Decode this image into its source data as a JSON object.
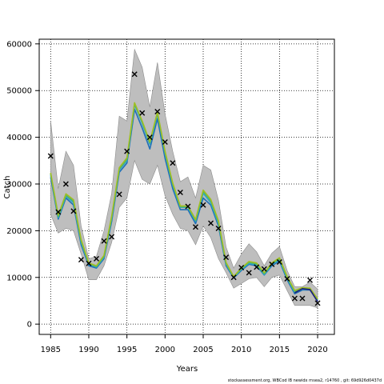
{
  "chart_data": {
    "type": "line",
    "xlabel": "Years",
    "ylabel": "Catch",
    "xlim": [
      1983.5,
      2022.2
    ],
    "ylim": [
      -2200,
      61000
    ],
    "x_ticks": [
      1985,
      1990,
      1995,
      2000,
      2005,
      2010,
      2015,
      2020
    ],
    "y_ticks": [
      0,
      10000,
      20000,
      30000,
      40000,
      50000,
      60000
    ],
    "grid": true,
    "grid_style": "dotted",
    "years": [
      1985,
      1986,
      1987,
      1988,
      1989,
      1990,
      1991,
      1992,
      1993,
      1994,
      1995,
      1996,
      1997,
      1998,
      1999,
      2000,
      2001,
      2002,
      2003,
      2004,
      2005,
      2006,
      2007,
      2008,
      2009,
      2010,
      2011,
      2012,
      2013,
      2014,
      2015,
      2016,
      2017,
      2018,
      2019,
      2020
    ],
    "observed": [
      36000,
      24000,
      30000,
      24200,
      13800,
      13000,
      14000,
      17800,
      18700,
      27800,
      37000,
      53500,
      45200,
      40000,
      45500,
      39000,
      34500,
      28200,
      25200,
      20800,
      25500,
      21600,
      20500,
      14300,
      10000,
      12100,
      11000,
      12200,
      11800,
      12800,
      13300,
      9700,
      5500,
      5500,
      9400,
      4500
    ],
    "ci_upper": [
      43500,
      29000,
      37000,
      34000,
      21000,
      14000,
      14500,
      20000,
      28000,
      44500,
      43500,
      58800,
      55000,
      46500,
      56000,
      45000,
      37000,
      30500,
      31500,
      27000,
      34000,
      33000,
      26500,
      16500,
      12000,
      15000,
      17200,
      15500,
      12500,
      15200,
      16600,
      11500,
      8000,
      8000,
      9000,
      7500
    ],
    "ci_lower": [
      23500,
      19500,
      20500,
      20000,
      15000,
      9500,
      9500,
      12500,
      17500,
      25000,
      27000,
      35000,
      31000,
      30000,
      34000,
      27500,
      23500,
      20500,
      20000,
      17000,
      21000,
      18500,
      14000,
      11000,
      7700,
      8700,
      9700,
      10000,
      8000,
      10000,
      10500,
      7200,
      4000,
      4000,
      4000,
      3500
    ],
    "series": [
      {
        "color": "#1f6fb8",
        "values": [
          31500,
          22500,
          27000,
          25500,
          17000,
          12500,
          12000,
          14000,
          22000,
          32500,
          34500,
          46000,
          42000,
          37500,
          44000,
          35500,
          29000,
          24500,
          24500,
          21500,
          27000,
          25500,
          21000,
          12500,
          9900,
          11500,
          12800,
          12500,
          10500,
          12500,
          13500,
          9500,
          6500,
          7300,
          7300,
          5000
        ]
      },
      {
        "color": "#2ea8c8",
        "values": [
          32000,
          22800,
          27400,
          26000,
          17500,
          12800,
          12200,
          14300,
          22500,
          33000,
          35000,
          47000,
          43000,
          38500,
          45000,
          36500,
          29800,
          25000,
          25000,
          22000,
          28000,
          26000,
          21500,
          12800,
          10000,
          11700,
          13000,
          12700,
          10600,
          12700,
          13800,
          9800,
          6800,
          7500,
          7500,
          5200
        ]
      },
      {
        "color": "#4db36a",
        "values": [
          32200,
          23000,
          27600,
          26300,
          17800,
          12900,
          12300,
          14500,
          22800,
          33200,
          35300,
          47200,
          43300,
          38800,
          45200,
          36800,
          30000,
          25100,
          25100,
          22200,
          28400,
          26400,
          21800,
          13000,
          10100,
          11900,
          13200,
          12900,
          10800,
          12900,
          14000,
          10000,
          7000,
          7700,
          7600,
          5300
        ]
      },
      {
        "color": "#9fbf22",
        "values": [
          32400,
          23300,
          27900,
          26600,
          18100,
          13100,
          12500,
          14700,
          23100,
          33500,
          35600,
          47400,
          43500,
          39000,
          45400,
          37000,
          30200,
          25300,
          25300,
          22400,
          28700,
          26700,
          22100,
          13200,
          10200,
          12000,
          13400,
          13100,
          11000,
          13100,
          14200,
          10200,
          7200,
          7800,
          7700,
          5400
        ]
      },
      {
        "color": "#1d1f7a",
        "values": [
          null,
          null,
          null,
          null,
          null,
          null,
          null,
          null,
          null,
          null,
          null,
          null,
          null,
          null,
          null,
          null,
          null,
          null,
          null,
          null,
          null,
          null,
          null,
          null,
          null,
          null,
          null,
          null,
          null,
          null,
          null,
          null,
          6700,
          7600,
          7400,
          4800
        ]
      }
    ],
    "ci_color": "#bebebe"
  },
  "footer": "stockassessment.org, WBCod IB newidx rnsea2, r14760 , git: 69d926d0437d"
}
